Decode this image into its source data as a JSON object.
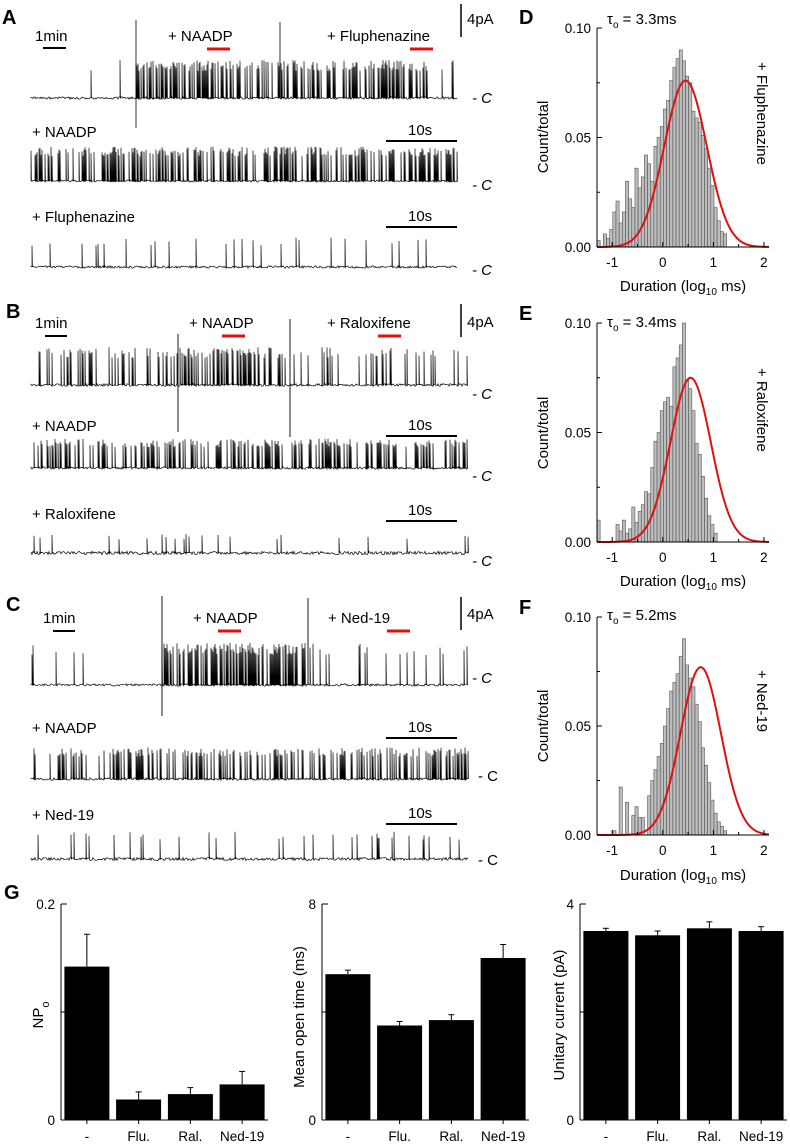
{
  "panel_labels": [
    "A",
    "B",
    "C",
    "D",
    "E",
    "F",
    "G"
  ],
  "traces": [
    {
      "panel": "A",
      "scale_time": "1min",
      "scale_amp": "4pA",
      "label_1": "+ NAADP",
      "label_2": "+ Fluphenazine",
      "closed": "- C",
      "row2_label": "+ NAADP",
      "row2_scale": "10s",
      "row3_label": "+ Fluphenazine",
      "row3_scale": "10s"
    },
    {
      "panel": "B",
      "scale_time": "1min",
      "scale_amp": "4pA",
      "label_1": "+ NAADP",
      "label_2": "+ Raloxifene",
      "closed": "- C",
      "row2_label": "+ NAADP",
      "row2_scale": "10s",
      "row3_label": "+ Raloxifene",
      "row3_scale": "10s"
    },
    {
      "panel": "C",
      "scale_time": "1min",
      "scale_amp": "4pA",
      "label_1": "+ NAADP",
      "label_2": "+ Ned-19",
      "closed": "- C",
      "row2_label": "+ NAADP",
      "row2_scale": "10s",
      "row3_label": "+ Ned-19",
      "row3_scale": "10s"
    }
  ],
  "chart_data": [
    {
      "panel": "D",
      "type": "bar",
      "title": "τo = 3.3ms",
      "tau_symbol": "τ",
      "tau_sub": "o",
      "tau_value": " = 3.3ms",
      "side_label": "+ Fluphenazine",
      "xlabel": "Duration (log10 ms)",
      "xlabel_main": "Duration (log",
      "xlabel_sub": "10",
      "xlabel_tail": " ms)",
      "ylabel": "Count/total",
      "xlim": [
        -1.3,
        2.1
      ],
      "ylim": [
        0,
        0.1
      ],
      "x_ticks": [
        -1,
        0,
        1,
        2
      ],
      "y_ticks": [
        0.0,
        0.05,
        0.1
      ],
      "y_tick_labels": [
        "0.00",
        "0.05",
        "0.10"
      ],
      "bin_width": 0.0625,
      "bin_start": -1.3,
      "values": [
        0.003,
        0.0,
        0.006,
        0.004,
        0.008,
        0.016,
        0.021,
        0.011,
        0.016,
        0.03,
        0.022,
        0.018,
        0.036,
        0.027,
        0.032,
        0.042,
        0.038,
        0.03,
        0.046,
        0.05,
        0.055,
        0.063,
        0.067,
        0.076,
        0.082,
        0.086,
        0.09,
        0.085,
        0.078,
        0.075,
        0.062,
        0.059,
        0.057,
        0.051,
        0.045,
        0.036,
        0.028,
        0.018,
        0.012,
        0.007,
        0.006,
        0.0
      ],
      "fit": {
        "type": "gaussian",
        "mean": 0.45,
        "sd": 0.42,
        "peak": 0.076,
        "color": "#e01010"
      },
      "bar_color": "#bdbdbd"
    },
    {
      "panel": "E",
      "type": "bar",
      "title": "τo = 3.4ms",
      "tau_symbol": "τ",
      "tau_sub": "o",
      "tau_value": " = 3.4ms",
      "side_label": "+ Raloxifene",
      "xlabel": "Duration (log10 ms)",
      "xlabel_main": "Duration (log",
      "xlabel_sub": "10",
      "xlabel_tail": " ms)",
      "ylabel": "Count/total",
      "xlim": [
        -1.3,
        2.1
      ],
      "ylim": [
        0,
        0.1
      ],
      "x_ticks": [
        -1,
        0,
        1,
        2
      ],
      "y_ticks": [
        0.0,
        0.05,
        0.1
      ],
      "y_tick_labels": [
        "0.00",
        "0.05",
        "0.10"
      ],
      "bin_width": 0.0625,
      "bin_start": -1.3,
      "values": [
        0.01,
        0.0,
        0.0,
        0.0,
        0.0,
        0.0,
        0.008,
        0.005,
        0.01,
        0.004,
        0.006,
        0.016,
        0.009,
        0.014,
        0.017,
        0.023,
        0.022,
        0.034,
        0.046,
        0.05,
        0.06,
        0.064,
        0.066,
        0.062,
        0.08,
        0.084,
        0.09,
        0.1,
        0.074,
        0.07,
        0.06,
        0.045,
        0.04,
        0.03,
        0.02,
        0.012,
        0.008,
        0.004,
        0.0
      ],
      "fit": {
        "type": "gaussian",
        "mean": 0.55,
        "sd": 0.4,
        "peak": 0.075,
        "color": "#e01010"
      },
      "bar_color": "#bdbdbd"
    },
    {
      "panel": "F",
      "type": "bar",
      "title": "τo = 5.2ms",
      "tau_symbol": "τ",
      "tau_sub": "o",
      "tau_value": " = 5.2ms",
      "side_label": "+ Ned-19",
      "xlabel": "Duration (log10 ms)",
      "xlabel_main": "Duration (log",
      "xlabel_sub": "10",
      "xlabel_tail": " ms)",
      "ylabel": "Count/total",
      "xlim": [
        -1.3,
        2.1
      ],
      "ylim": [
        0,
        0.1
      ],
      "x_ticks": [
        -1,
        0,
        1,
        2
      ],
      "y_ticks": [
        0.0,
        0.05,
        0.1
      ],
      "y_tick_labels": [
        "0.00",
        "0.05",
        "0.10"
      ],
      "bin_width": 0.0625,
      "bin_start": -1.3,
      "values": [
        0.0,
        0.0,
        0.0,
        0.0,
        0.0,
        0.002,
        0.0,
        0.022,
        0.0,
        0.015,
        0.0,
        0.009,
        0.013,
        0.008,
        0.008,
        0.0,
        0.018,
        0.025,
        0.03,
        0.036,
        0.042,
        0.05,
        0.058,
        0.066,
        0.07,
        0.074,
        0.082,
        0.09,
        0.078,
        0.072,
        0.068,
        0.06,
        0.052,
        0.04,
        0.032,
        0.024,
        0.016,
        0.01,
        0.006,
        0.004,
        0.002
      ],
      "fit": {
        "type": "gaussian",
        "mean": 0.75,
        "sd": 0.4,
        "peak": 0.077,
        "color": "#e01010"
      },
      "bar_color": "#bdbdbd"
    },
    {
      "panel": "G",
      "type": "bar",
      "ylabel": "NPo",
      "ylabel_main": "NP",
      "ylabel_sub": "o",
      "categories": [
        "-",
        "Flu.",
        "Ral.",
        "Ned-19"
      ],
      "values": [
        0.142,
        0.019,
        0.024,
        0.033
      ],
      "errors": [
        0.03,
        0.007,
        0.006,
        0.012
      ],
      "ylim": [
        0,
        0.2
      ],
      "y_ticks": [
        0,
        0.2
      ],
      "y_tick_labels": [
        "0",
        "0.2"
      ],
      "minor_tick": 0.1,
      "bar_color": "#000000"
    },
    {
      "panel": "G",
      "type": "bar",
      "ylabel": "Mean open time (ms)",
      "categories": [
        "-",
        "Flu.",
        "Ral.",
        "Ned-19"
      ],
      "values": [
        5.4,
        3.5,
        3.7,
        6.0
      ],
      "errors": [
        0.15,
        0.15,
        0.2,
        0.5
      ],
      "ylim": [
        0,
        8
      ],
      "y_ticks": [
        0,
        8
      ],
      "y_tick_labels": [
        "0",
        "8"
      ],
      "minor_tick": 4,
      "bar_color": "#000000"
    },
    {
      "panel": "G",
      "type": "bar",
      "ylabel": "Unitary current (pA)",
      "categories": [
        "-",
        "Flu.",
        "Ral.",
        "Ned-19"
      ],
      "values": [
        3.5,
        3.42,
        3.55,
        3.5
      ],
      "errors": [
        0.05,
        0.08,
        0.12,
        0.08
      ],
      "ylim": [
        0,
        4
      ],
      "y_ticks": [
        0,
        4
      ],
      "y_tick_labels": [
        "0",
        "4"
      ],
      "minor_tick": 2,
      "bar_color": "#000000"
    }
  ]
}
